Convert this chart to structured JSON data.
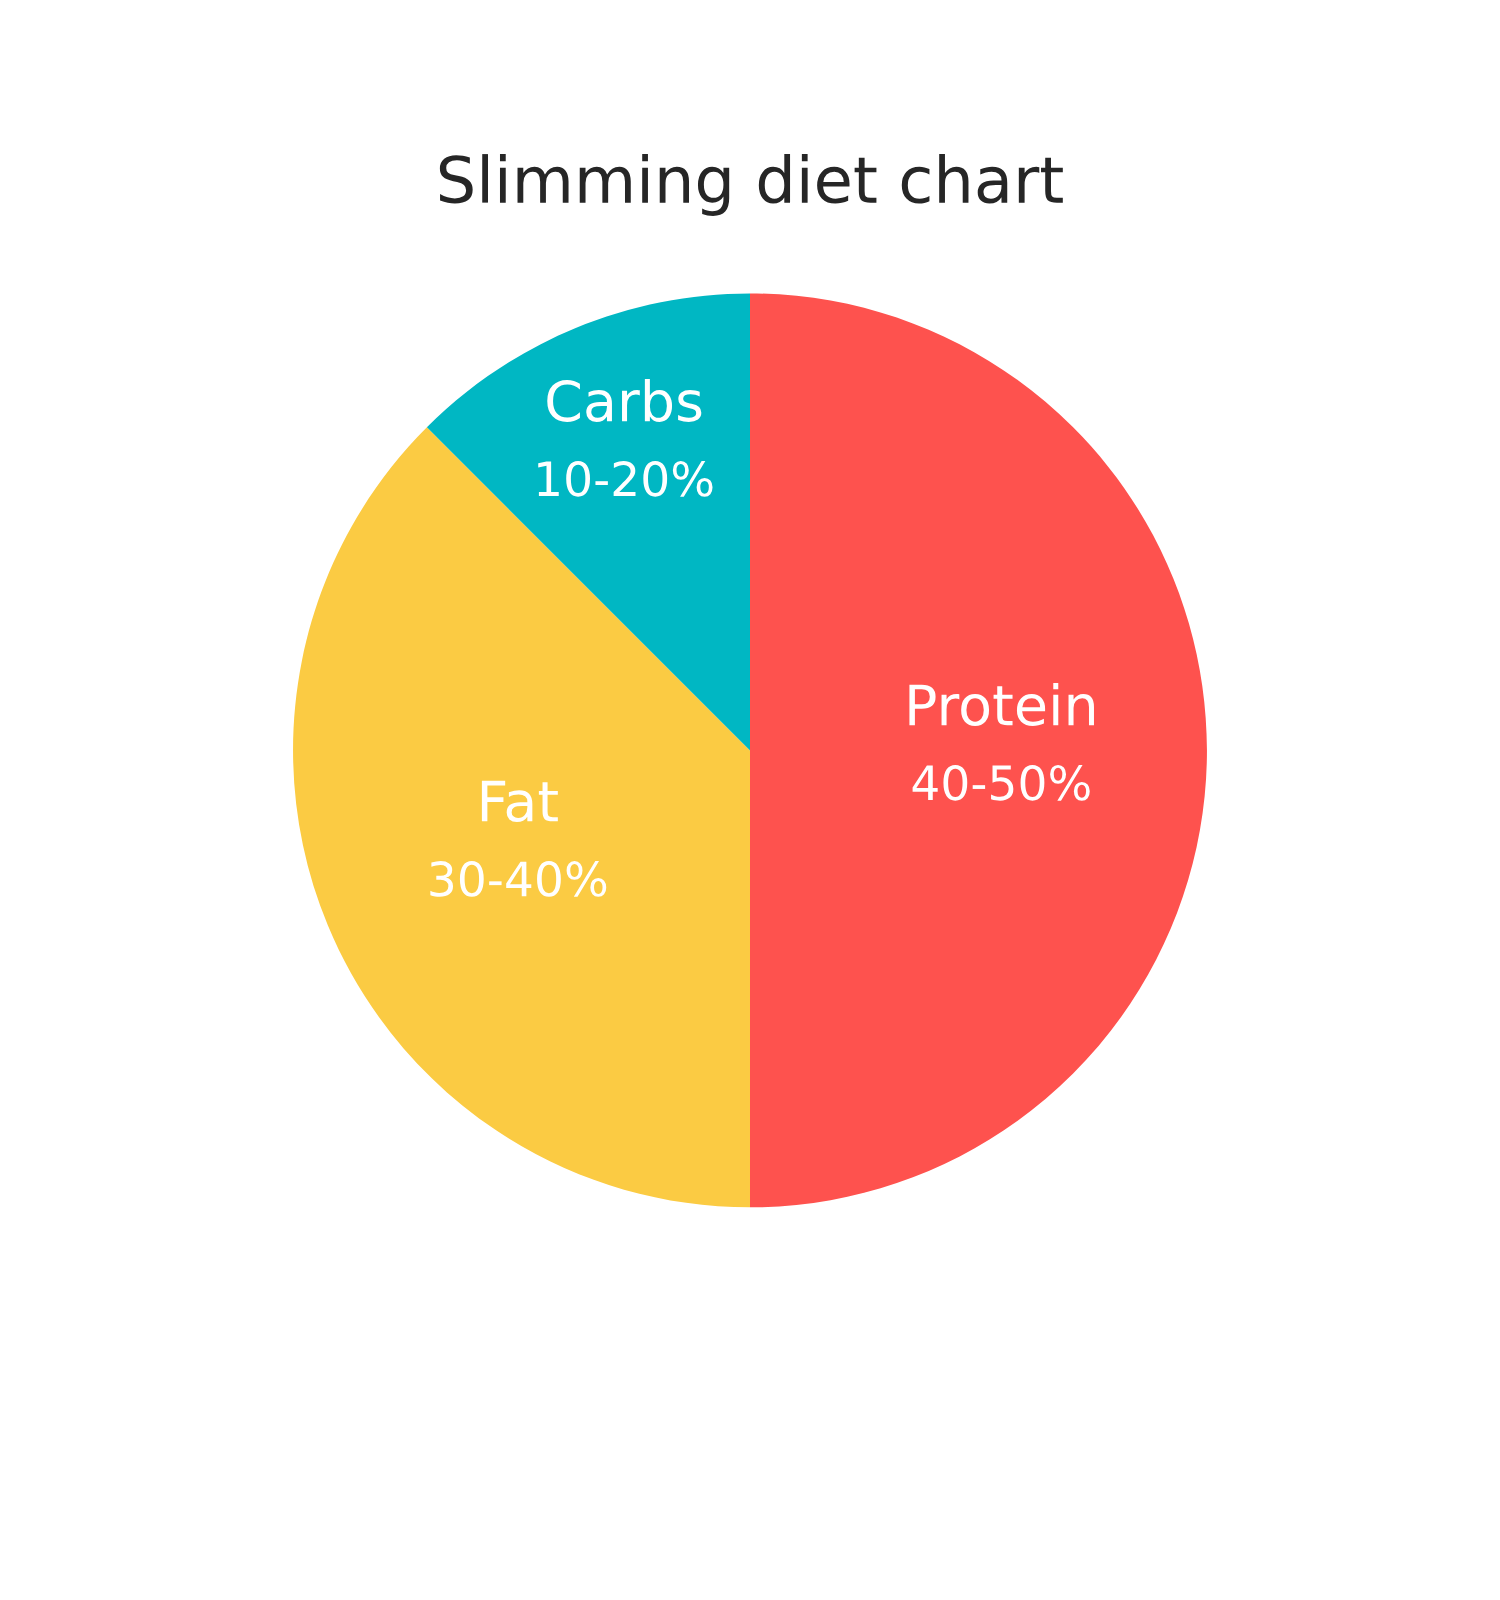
{
  "chart_data": {
    "type": "pie",
    "title": "Slimming diet chart",
    "categories": [
      "Protein\n40-50%",
      "Fat\n30-40%",
      "Carbs\n10-20%"
    ],
    "values": [
      50,
      37.5,
      12.5
    ],
    "colors": [
      "#fe524e",
      "#fbcb43",
      "#00b7c3"
    ]
  }
}
